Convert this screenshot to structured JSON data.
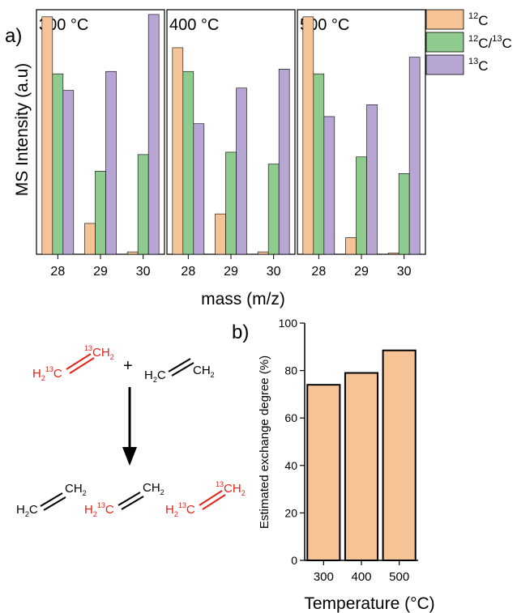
{
  "panel_a": {
    "label": "a)",
    "ylabel": "MS Intensity (a.u)",
    "xlabel": "mass (m/z)",
    "legend": [
      {
        "name": "12C/13C",
        "sup1": "12",
        "mid": "C/",
        "sup2": "13",
        "end": "C"
      }
    ]
  },
  "panel_b": {
    "label": "b)"
  },
  "scheme": {
    "plus": "+",
    "sub2": "2",
    "H": "H",
    "C": "C",
    "CH": "CH",
    "sup13": "13"
  },
  "colors": {
    "12C": "#f5c396",
    "12C/13C": "#8fcb8f",
    "13C": "#b7a6d3",
    "bar_b": "#f5c396",
    "label_red": "#e3241b"
  },
  "chart_data": [
    {
      "type": "bar",
      "subplots": [
        {
          "title": "300 °C",
          "categories": [
            "28",
            "29",
            "30"
          ],
          "series": [
            {
              "name": "12C",
              "values": [
                100,
                13,
                1
              ]
            },
            {
              "name": "12C/13C",
              "values": [
                76,
                35,
                42
              ]
            },
            {
              "name": "13C",
              "values": [
                69,
                77,
                101
              ]
            }
          ]
        },
        {
          "title": "400 °C",
          "categories": [
            "28",
            "29",
            "30"
          ],
          "series": [
            {
              "name": "12C",
              "values": [
                87,
                17,
                1
              ]
            },
            {
              "name": "12C/13C",
              "values": [
                77,
                43,
                38
              ]
            },
            {
              "name": "13C",
              "values": [
                55,
                70,
                78
              ]
            }
          ]
        },
        {
          "title": "500 °C",
          "categories": [
            "28",
            "29",
            "30"
          ],
          "series": [
            {
              "name": "12C",
              "values": [
                100,
                7,
                0.5
              ]
            },
            {
              "name": "12C/13C",
              "values": [
                76,
                41,
                34
              ]
            },
            {
              "name": "13C",
              "values": [
                58,
                63,
                83
              ]
            }
          ]
        }
      ],
      "xlabel": "mass (m/z)",
      "ylabel": "MS Intensity (a.u)",
      "ylim": [
        0,
        103
      ],
      "legend_position": "right"
    },
    {
      "type": "bar",
      "categories": [
        "300",
        "400",
        "500"
      ],
      "values": [
        74,
        79,
        88.5
      ],
      "xlabel": "Temperature (°C)",
      "ylabel": "Estimated exchange degree (%)",
      "ylim": [
        0,
        100
      ],
      "yticks": [
        0,
        20,
        40,
        60,
        80,
        100
      ]
    }
  ]
}
